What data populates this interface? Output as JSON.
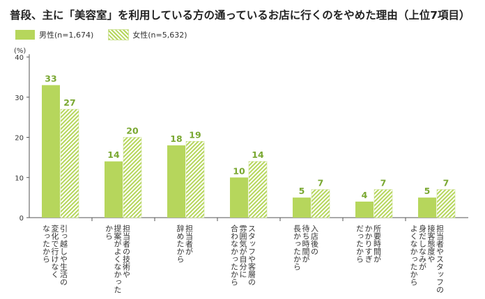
{
  "title": "普段、主に「美容室」を利用している方の通っているお店に行くのをやめた理由（上位7項目）",
  "legend": {
    "male": "男性(n=1,674)",
    "female": "女性(n=5,632)"
  },
  "colors": {
    "bar": "#b6d65c",
    "value_label": "#7aa832"
  },
  "chart_data": {
    "type": "bar",
    "unit_label": "(%)",
    "ylim": [
      0,
      40
    ],
    "yticks": [
      0,
      10,
      20,
      30,
      40
    ],
    "grid": false,
    "legend_position": "top-left",
    "categories": [
      "引っ越しや生活の変化で行けなくなったから",
      "担当者の技術や提案がよくなかったから",
      "担当者が辞めたから",
      "スタッフや客層の雰囲気が自分に合わなかったから",
      "入店後の待ち時間が長かったから",
      "所要時間がかかりすぎだったから",
      "担当者やスタッフの接客態度や身だしなみがよくなかったから"
    ],
    "category_lines": [
      [
        "引っ越しや生活の",
        "変化で行けなく",
        "なったから"
      ],
      [
        "担当者の技術や",
        "提案がよくなかった",
        "から"
      ],
      [
        "担当者が",
        "辞めたから"
      ],
      [
        "スタッフや客層の",
        "雰囲気が自分に",
        "合わなかったから"
      ],
      [
        "入店後の",
        "待ち時間が",
        "長かったから"
      ],
      [
        "所要時間が",
        "かかりすぎ",
        "だったから"
      ],
      [
        "担当者やスタッフの",
        "接客態度や",
        "身だしなみが",
        "よくなかったから"
      ]
    ],
    "series": [
      {
        "name": "男性(n=1,674)",
        "values": [
          33,
          14,
          18,
          10,
          5,
          4,
          5
        ]
      },
      {
        "name": "女性(n=5,632)",
        "values": [
          27,
          20,
          19,
          14,
          7,
          7,
          7
        ]
      }
    ]
  }
}
